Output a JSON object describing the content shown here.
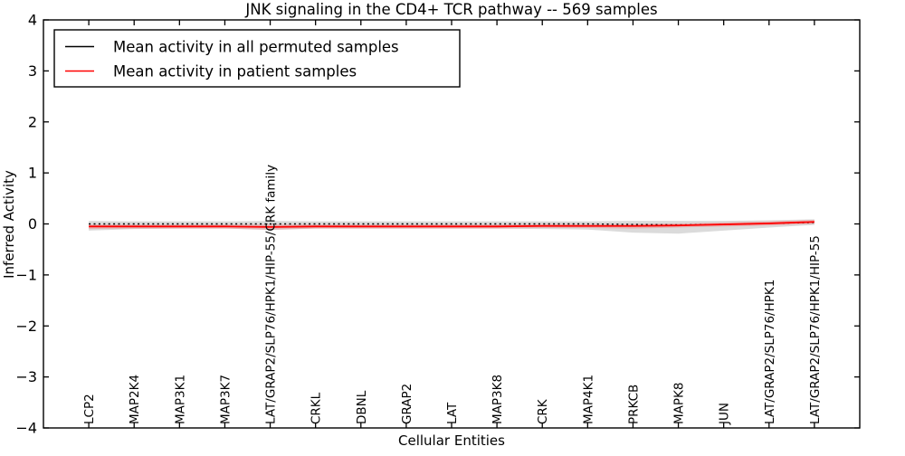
{
  "chart_data": {
    "type": "line",
    "title": "JNK signaling in the CD4+ TCR pathway -- 569 samples",
    "xlabel": "Cellular Entities",
    "ylabel": "Inferred Activity",
    "ylim": [
      -4,
      4
    ],
    "xlim": [
      -1,
      17
    ],
    "grid": false,
    "legend_position": "upper left",
    "yticks": [
      {
        "value": 4,
        "label": "4"
      },
      {
        "value": 3,
        "label": "3"
      },
      {
        "value": 2,
        "label": "2"
      },
      {
        "value": 1,
        "label": "1"
      },
      {
        "value": 0,
        "label": "0"
      },
      {
        "value": -1,
        "label": "−1"
      },
      {
        "value": -2,
        "label": "−2"
      },
      {
        "value": -3,
        "label": "−3"
      },
      {
        "value": -4,
        "label": "−4"
      }
    ],
    "categories": [
      "LCP2",
      "MAP2K4",
      "MAP3K1",
      "MAP3K7",
      "LAT/GRAP2/SLP76/HPK1/HIP-55/CRK family",
      "CRKL",
      "DBNL",
      "GRAP2",
      "LAT",
      "MAP3K8",
      "CRK",
      "MAP4K1",
      "PRKCB",
      "MAPK8",
      "JUN",
      "LAT/GRAP2/SLP76/HPK1",
      "LAT/GRAP2/SLP76/HPK1/HIP-55"
    ],
    "series": [
      {
        "name": "Mean activity in all permuted samples",
        "color": "#000000",
        "line_style": "dotted",
        "values": [
          0.0,
          0.0,
          0.0,
          0.0,
          0.0,
          0.0,
          0.0,
          0.0,
          0.0,
          0.0,
          0.0,
          0.0,
          -0.01,
          -0.02,
          -0.01,
          0.01,
          0.03
        ]
      },
      {
        "name": "Mean activity in patient samples",
        "color": "#ff0000",
        "line_style": "solid",
        "values": [
          -0.05,
          -0.05,
          -0.05,
          -0.05,
          -0.06,
          -0.05,
          -0.05,
          -0.05,
          -0.05,
          -0.05,
          -0.04,
          -0.04,
          -0.04,
          -0.03,
          -0.01,
          0.01,
          0.04
        ]
      }
    ],
    "bands": [
      {
        "name": "permuted samples range",
        "color": "#999999",
        "opacity": 0.35,
        "upper": [
          0.06,
          0.05,
          0.05,
          0.05,
          0.06,
          0.05,
          0.05,
          0.05,
          0.05,
          0.05,
          0.05,
          0.05,
          0.06,
          0.06,
          0.06,
          0.07,
          0.09
        ],
        "lower": [
          -0.13,
          -0.1,
          -0.09,
          -0.09,
          -0.12,
          -0.09,
          -0.09,
          -0.09,
          -0.09,
          -0.09,
          -0.1,
          -0.11,
          -0.17,
          -0.19,
          -0.13,
          -0.07,
          -0.02
        ]
      },
      {
        "name": "patient samples range",
        "color": "#ff4444",
        "opacity": 0.25,
        "upper": [
          -0.01,
          -0.01,
          -0.01,
          -0.01,
          -0.01,
          -0.01,
          -0.01,
          -0.01,
          -0.01,
          -0.01,
          0.0,
          0.0,
          0.0,
          0.01,
          0.03,
          0.05,
          0.08
        ],
        "lower": [
          -0.1,
          -0.09,
          -0.09,
          -0.09,
          -0.11,
          -0.09,
          -0.09,
          -0.09,
          -0.09,
          -0.09,
          -0.08,
          -0.08,
          -0.09,
          -0.07,
          -0.05,
          -0.03,
          0.0
        ]
      }
    ]
  },
  "legend": {
    "items": [
      {
        "label": "Mean activity in all permuted samples",
        "color": "#000000"
      },
      {
        "label": "Mean activity in patient samples",
        "color": "#ff0000"
      }
    ]
  }
}
